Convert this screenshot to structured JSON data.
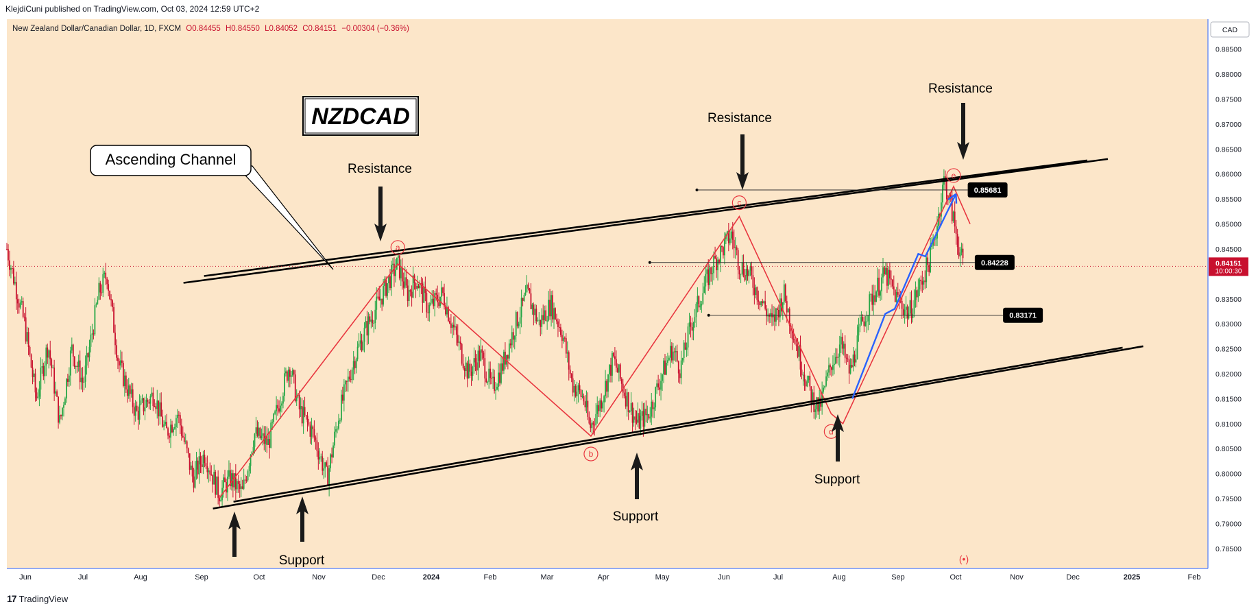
{
  "header": {
    "published_by": "KlejdiCuni published on TradingView.com, Oct 03, 2024 12:59 UTC+2"
  },
  "footer": {
    "brand": "TradingView",
    "logo_glyph": "17"
  },
  "colors": {
    "plot_bg": "#fce6c9",
    "up_candle": "#26a646",
    "down_candle": "#c8102e",
    "channel": "#000000",
    "zigzag": "#e8363f",
    "arrow_blue": "#2962ff",
    "price_badge": "#000000",
    "last_price": "#c8102e"
  },
  "chart_data": {
    "type": "candlestick",
    "symbol_line": {
      "name": "New Zealand Dollar/Canadian Dollar, 1D, FXCM",
      "open": "O0.84455",
      "high": "H0.84550",
      "low": "L0.84052",
      "close": "C0.84151",
      "change": "−0.00304 (−0.36%)"
    },
    "currency_label": "CAD",
    "y_range": [
      0.781,
      0.891
    ],
    "y_ticks": [
      "0.88500",
      "0.88000",
      "0.87500",
      "0.87000",
      "0.86500",
      "0.86000",
      "0.85500",
      "0.85000",
      "0.84500",
      "0.83500",
      "0.83000",
      "0.82500",
      "0.82000",
      "0.81500",
      "0.81000",
      "0.80500",
      "0.80000",
      "0.79500",
      "0.79000",
      "0.78500"
    ],
    "x_ticks": [
      "Jun",
      "Jul",
      "Aug",
      "Sep",
      "Oct",
      "Nov",
      "Dec",
      "2024",
      "Feb",
      "Mar",
      "Apr",
      "May",
      "Jun",
      "Jul",
      "Aug",
      "Sep",
      "Oct",
      "Nov",
      "Dec",
      "2025",
      "Feb"
    ],
    "last_price": {
      "value": "0.84151",
      "countdown": "10:00:30",
      "level": 0.84151
    },
    "price_levels": [
      {
        "label": "0.85681",
        "value": 0.85681
      },
      {
        "label": "0.84228",
        "value": 0.84228
      },
      {
        "label": "0.83171",
        "value": 0.83171
      }
    ],
    "price_path": [
      [
        0,
        0.845
      ],
      [
        15,
        0.83
      ],
      [
        25,
        0.815
      ],
      [
        35,
        0.826
      ],
      [
        45,
        0.81
      ],
      [
        55,
        0.825
      ],
      [
        65,
        0.818
      ],
      [
        78,
        0.836
      ],
      [
        85,
        0.84
      ],
      [
        95,
        0.822
      ],
      [
        110,
        0.812
      ],
      [
        125,
        0.816
      ],
      [
        135,
        0.808
      ],
      [
        145,
        0.812
      ],
      [
        158,
        0.799
      ],
      [
        168,
        0.804
      ],
      [
        180,
        0.796
      ],
      [
        190,
        0.799
      ],
      [
        200,
        0.796
      ],
      [
        210,
        0.808
      ],
      [
        222,
        0.806
      ],
      [
        232,
        0.815
      ],
      [
        240,
        0.822
      ],
      [
        248,
        0.813
      ],
      [
        260,
        0.808
      ],
      [
        272,
        0.799
      ],
      [
        282,
        0.812
      ],
      [
        295,
        0.823
      ],
      [
        305,
        0.829
      ],
      [
        315,
        0.834
      ],
      [
        325,
        0.839
      ],
      [
        332,
        0.842
      ],
      [
        340,
        0.836
      ],
      [
        348,
        0.839
      ],
      [
        358,
        0.833
      ],
      [
        370,
        0.836
      ],
      [
        382,
        0.827
      ],
      [
        392,
        0.82
      ],
      [
        402,
        0.824
      ],
      [
        412,
        0.817
      ],
      [
        420,
        0.821
      ],
      [
        432,
        0.83
      ],
      [
        442,
        0.836
      ],
      [
        452,
        0.83
      ],
      [
        462,
        0.834
      ],
      [
        472,
        0.828
      ],
      [
        480,
        0.818
      ],
      [
        490,
        0.815
      ],
      [
        495,
        0.809
      ],
      [
        505,
        0.815
      ],
      [
        515,
        0.823
      ],
      [
        525,
        0.816
      ],
      [
        535,
        0.81
      ],
      [
        545,
        0.812
      ],
      [
        555,
        0.819
      ],
      [
        565,
        0.825
      ],
      [
        572,
        0.821
      ],
      [
        580,
        0.829
      ],
      [
        590,
        0.836
      ],
      [
        600,
        0.842
      ],
      [
        608,
        0.845
      ],
      [
        615,
        0.848
      ],
      [
        622,
        0.842
      ],
      [
        630,
        0.84
      ],
      [
        640,
        0.835
      ],
      [
        650,
        0.83
      ],
      [
        660,
        0.836
      ],
      [
        668,
        0.828
      ],
      [
        676,
        0.821
      ],
      [
        684,
        0.815
      ],
      [
        690,
        0.813
      ],
      [
        700,
        0.822
      ],
      [
        708,
        0.826
      ],
      [
        716,
        0.82
      ],
      [
        726,
        0.83
      ],
      [
        736,
        0.836
      ],
      [
        746,
        0.84
      ],
      [
        756,
        0.835
      ],
      [
        766,
        0.832
      ],
      [
        776,
        0.838
      ],
      [
        784,
        0.843
      ],
      [
        790,
        0.85
      ],
      [
        796,
        0.859
      ],
      [
        802,
        0.853
      ],
      [
        808,
        0.846
      ],
      [
        812,
        0.8415
      ]
    ],
    "wave_points": [
      {
        "label": "a",
        "idx": 332,
        "value": 0.842
      },
      {
        "label": "b",
        "idx": 496,
        "value": 0.8075
      },
      {
        "label": "c",
        "idx": 622,
        "value": 0.8515
      },
      {
        "label": "d",
        "idx": 700,
        "value": 0.812
      },
      {
        "label": "e",
        "idx": 804,
        "value": 0.8575
      }
    ],
    "zigzag": [
      [
        180,
        0.795
      ],
      [
        332,
        0.842
      ],
      [
        496,
        0.8075
      ],
      [
        622,
        0.8515
      ],
      [
        700,
        0.812
      ],
      [
        710,
        0.81
      ],
      [
        804,
        0.8575
      ],
      [
        818,
        0.85
      ]
    ],
    "blue_path": [
      [
        718,
        0.815
      ],
      [
        746,
        0.832
      ],
      [
        754,
        0.833
      ],
      [
        774,
        0.844
      ],
      [
        780,
        0.8435
      ],
      [
        806,
        0.856
      ]
    ],
    "channel_upper": [
      [
        150,
        0.8382
      ],
      [
        935,
        0.863
      ]
    ],
    "channel_lower": [
      [
        175,
        0.793
      ],
      [
        965,
        0.8255
      ]
    ],
    "annotations": {
      "title": "NZDCAD",
      "channel_label": "Ascending Channel",
      "resistance": "Resistance",
      "support": "Support"
    },
    "watermark_glyph": "(•)"
  }
}
